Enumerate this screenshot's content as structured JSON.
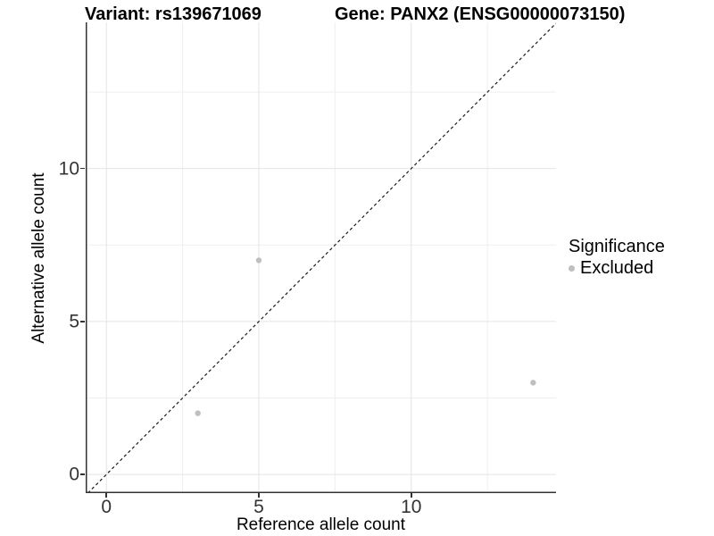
{
  "header": {
    "variant_title": "Variant: rs139671069",
    "gene_title": "Gene: PANX2 (ENSG00000073150)"
  },
  "colors": {
    "point": "#bfbfbf",
    "grid_major": "#e4e4e4",
    "grid_minor": "#efefef",
    "axis_line": "#333333",
    "tick_mark": "#333333",
    "tick_text": "#333333",
    "identity_line": "#1a1a1a",
    "background": "#ffffff"
  },
  "chart_data": {
    "type": "scatter",
    "variant_title": "Variant: rs139671069",
    "gene_title": "Gene: PANX2 (ENSG00000073150)",
    "xlabel": "Reference allele count",
    "ylabel": "Alternative allele count",
    "xlim": [
      -0.68,
      14.75
    ],
    "ylim": [
      -0.61,
      14.78
    ],
    "x_major_ticks": [
      0,
      5,
      10
    ],
    "x_minor_ticks": [
      2.5,
      7.5,
      12.5
    ],
    "y_major_ticks": [
      0,
      5,
      10
    ],
    "y_minor_ticks": [
      2.5,
      7.5,
      12.5
    ],
    "grid": true,
    "legend_position": "right",
    "legend": {
      "title": "Significance",
      "items": [
        {
          "label": "Excluded",
          "color": "#bfbfbf"
        }
      ]
    },
    "series": [
      {
        "name": "Excluded",
        "color": "#bfbfbf",
        "point_radius": 3.2,
        "points": [
          [
            3,
            2
          ],
          [
            5,
            7
          ],
          [
            14,
            3
          ]
        ]
      }
    ],
    "identity_line": {
      "slope": 1,
      "intercept": 0,
      "style": "dashed",
      "color": "#1a1a1a"
    }
  }
}
